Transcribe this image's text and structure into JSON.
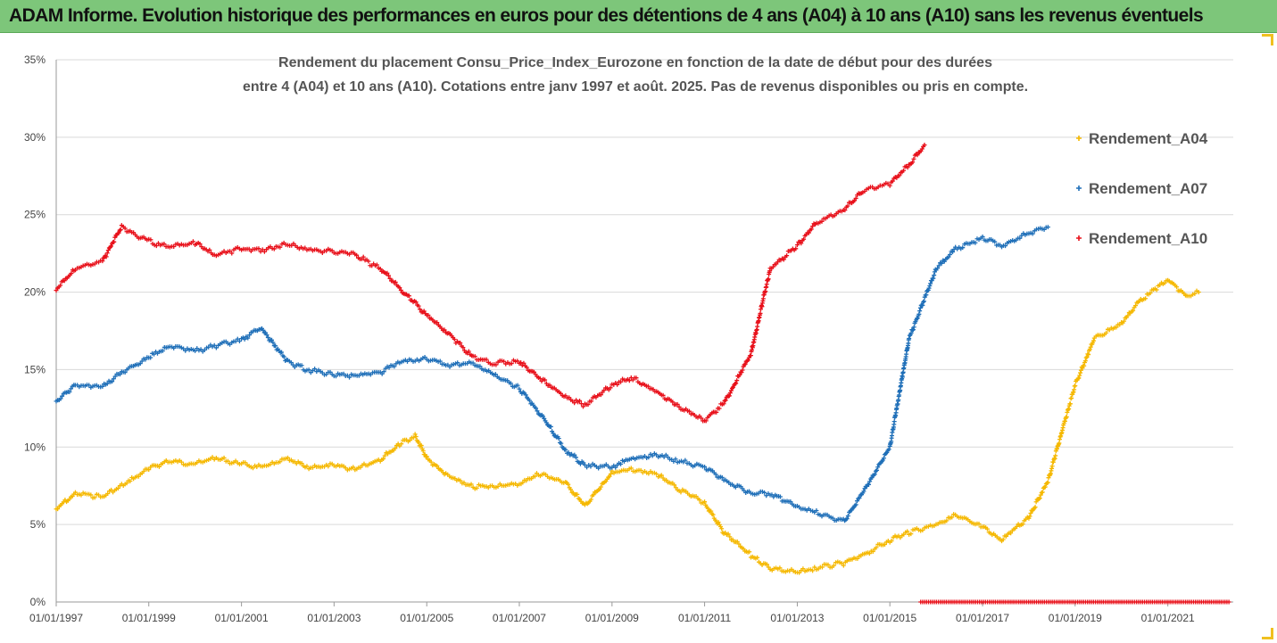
{
  "banner": {
    "title": "ADAM Informe. Evolution historique des performances en euros pour des détentions de 4 ans (A04) à 10 ans (A10) sans les revenus éventuels"
  },
  "chart_data": {
    "type": "scatter",
    "title_lines": [
      "Rendement du placement Consu_Price_Index_Eurozone en fonction de la date de début pour des durées",
      "entre 4 (A04) et 10 ans (A10). Cotations entre janv 1997 et août. 2025. Pas de revenus disponibles ou pris en compte."
    ],
    "xlabel": "",
    "ylabel": "",
    "x_ticks": [
      "01/01/1997",
      "01/01/1999",
      "01/01/2001",
      "01/01/2003",
      "01/01/2005",
      "01/01/2007",
      "01/01/2009",
      "01/01/2011",
      "01/01/2013",
      "01/01/2015",
      "01/01/2017",
      "01/01/2019",
      "01/01/2021"
    ],
    "y_ticks": [
      "0%",
      "5%",
      "10%",
      "15%",
      "20%",
      "25%",
      "30%",
      "35%"
    ],
    "ylim": [
      0,
      35
    ],
    "xlim": [
      "1997-01-01",
      "2022-06-01"
    ],
    "grid": "horizontal",
    "legend_position": "right",
    "series": [
      {
        "name": "Rendement_A04",
        "color": "#f5b800",
        "points": [
          [
            "1997-01-01",
            6.0
          ],
          [
            "1997-06-01",
            7.0
          ],
          [
            "1998-01-01",
            6.8
          ],
          [
            "1998-06-01",
            7.5
          ],
          [
            "1999-01-01",
            8.6
          ],
          [
            "1999-06-01",
            9.1
          ],
          [
            "2000-01-01",
            8.9
          ],
          [
            "2000-06-01",
            9.3
          ],
          [
            "2001-01-01",
            8.9
          ],
          [
            "2001-06-01",
            8.7
          ],
          [
            "2002-01-01",
            9.2
          ],
          [
            "2002-06-01",
            8.7
          ],
          [
            "2003-01-01",
            8.8
          ],
          [
            "2003-06-01",
            8.6
          ],
          [
            "2004-01-01",
            9.2
          ],
          [
            "2004-06-01",
            10.2
          ],
          [
            "2004-10-01",
            10.7
          ],
          [
            "2005-01-01",
            9.3
          ],
          [
            "2005-06-01",
            8.2
          ],
          [
            "2006-01-01",
            7.4
          ],
          [
            "2006-06-01",
            7.5
          ],
          [
            "2007-01-01",
            7.6
          ],
          [
            "2007-06-01",
            8.3
          ],
          [
            "2008-01-01",
            7.7
          ],
          [
            "2008-06-01",
            6.2
          ],
          [
            "2009-01-01",
            8.3
          ],
          [
            "2009-06-01",
            8.6
          ],
          [
            "2010-01-01",
            8.2
          ],
          [
            "2010-06-01",
            7.3
          ],
          [
            "2011-01-01",
            6.4
          ],
          [
            "2011-06-01",
            4.5
          ],
          [
            "2012-01-01",
            3.0
          ],
          [
            "2012-06-01",
            2.2
          ],
          [
            "2013-01-01",
            1.9
          ],
          [
            "2013-06-01",
            2.2
          ],
          [
            "2014-01-01",
            2.5
          ],
          [
            "2014-06-01",
            3.0
          ],
          [
            "2015-01-01",
            4.0
          ],
          [
            "2015-06-01",
            4.5
          ],
          [
            "2016-01-01",
            5.0
          ],
          [
            "2016-06-01",
            5.6
          ],
          [
            "2017-01-01",
            4.8
          ],
          [
            "2017-06-01",
            4.0
          ],
          [
            "2018-01-01",
            5.5
          ],
          [
            "2018-06-01",
            7.8
          ],
          [
            "2019-01-01",
            14.0
          ],
          [
            "2019-06-01",
            17.0
          ],
          [
            "2020-01-01",
            18.0
          ],
          [
            "2020-06-01",
            19.5
          ],
          [
            "2021-01-01",
            20.8
          ],
          [
            "2021-06-01",
            19.7
          ],
          [
            "2021-09-01",
            20.0
          ]
        ]
      },
      {
        "name": "Rendement_A07",
        "color": "#1f6fb8",
        "points": [
          [
            "1997-01-01",
            13.0
          ],
          [
            "1997-06-01",
            14.0
          ],
          [
            "1998-01-01",
            13.9
          ],
          [
            "1998-06-01",
            14.8
          ],
          [
            "1999-01-01",
            15.8
          ],
          [
            "1999-06-01",
            16.5
          ],
          [
            "2000-01-01",
            16.2
          ],
          [
            "2000-06-01",
            16.5
          ],
          [
            "2001-01-01",
            16.9
          ],
          [
            "2001-06-01",
            17.7
          ],
          [
            "2002-01-01",
            15.5
          ],
          [
            "2002-06-01",
            15.0
          ],
          [
            "2003-01-01",
            14.7
          ],
          [
            "2003-06-01",
            14.6
          ],
          [
            "2004-01-01",
            14.8
          ],
          [
            "2004-06-01",
            15.5
          ],
          [
            "2005-01-01",
            15.7
          ],
          [
            "2005-06-01",
            15.3
          ],
          [
            "2006-01-01",
            15.4
          ],
          [
            "2006-06-01",
            14.7
          ],
          [
            "2007-01-01",
            13.8
          ],
          [
            "2007-06-01",
            12.3
          ],
          [
            "2008-01-01",
            9.8
          ],
          [
            "2008-06-01",
            8.8
          ],
          [
            "2009-01-01",
            8.7
          ],
          [
            "2009-06-01",
            9.3
          ],
          [
            "2010-01-01",
            9.5
          ],
          [
            "2010-06-01",
            9.1
          ],
          [
            "2011-01-01",
            8.7
          ],
          [
            "2011-06-01",
            7.9
          ],
          [
            "2012-01-01",
            7.0
          ],
          [
            "2012-06-01",
            7.0
          ],
          [
            "2013-01-01",
            6.1
          ],
          [
            "2013-06-01",
            5.8
          ],
          [
            "2014-01-01",
            5.2
          ],
          [
            "2014-06-01",
            7.0
          ],
          [
            "2015-01-01",
            10.0
          ],
          [
            "2015-06-01",
            17.0
          ],
          [
            "2016-01-01",
            21.5
          ],
          [
            "2016-06-01",
            22.8
          ],
          [
            "2017-01-01",
            23.5
          ],
          [
            "2017-06-01",
            23.0
          ],
          [
            "2018-01-01",
            23.8
          ],
          [
            "2018-06-01",
            24.2
          ]
        ]
      },
      {
        "name": "Rendement_A10",
        "color": "#e8101a",
        "points": [
          [
            "1997-01-01",
            20.2
          ],
          [
            "1997-06-01",
            21.5
          ],
          [
            "1998-01-01",
            22.0
          ],
          [
            "1998-06-01",
            24.2
          ],
          [
            "1999-01-01",
            23.3
          ],
          [
            "1999-06-01",
            22.9
          ],
          [
            "2000-01-01",
            23.2
          ],
          [
            "2000-06-01",
            22.4
          ],
          [
            "2001-01-01",
            22.8
          ],
          [
            "2001-06-01",
            22.7
          ],
          [
            "2002-01-01",
            23.1
          ],
          [
            "2002-06-01",
            22.8
          ],
          [
            "2003-01-01",
            22.6
          ],
          [
            "2003-06-01",
            22.5
          ],
          [
            "2004-01-01",
            21.5
          ],
          [
            "2004-06-01",
            20.3
          ],
          [
            "2005-01-01",
            18.5
          ],
          [
            "2005-06-01",
            17.5
          ],
          [
            "2006-01-01",
            15.8
          ],
          [
            "2006-06-01",
            15.4
          ],
          [
            "2007-01-01",
            15.5
          ],
          [
            "2007-06-01",
            14.5
          ],
          [
            "2008-01-01",
            13.2
          ],
          [
            "2008-06-01",
            12.7
          ],
          [
            "2009-01-01",
            14.0
          ],
          [
            "2009-06-01",
            14.5
          ],
          [
            "2010-01-01",
            13.5
          ],
          [
            "2010-06-01",
            12.7
          ],
          [
            "2011-01-01",
            11.7
          ],
          [
            "2011-06-01",
            12.8
          ],
          [
            "2012-01-01",
            16.0
          ],
          [
            "2012-06-01",
            21.5
          ],
          [
            "2013-01-01",
            23.0
          ],
          [
            "2013-06-01",
            24.5
          ],
          [
            "2014-01-01",
            25.3
          ],
          [
            "2014-06-01",
            26.5
          ],
          [
            "2015-01-01",
            27.0
          ],
          [
            "2015-06-01",
            28.2
          ],
          [
            "2015-10-01",
            29.5
          ]
        ],
        "zero_segment": [
          "2015-09-01",
          "2022-05-01"
        ]
      }
    ]
  }
}
